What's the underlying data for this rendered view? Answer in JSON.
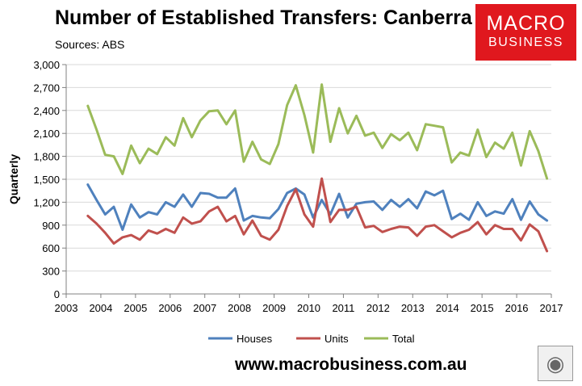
{
  "header": {
    "title": "Number of Established Transfers: Canberra",
    "source": "Sources: ABS"
  },
  "logo": {
    "line1": "MACRO",
    "line2": "BUSINESS"
  },
  "footer": {
    "url": "www.macrobusiness.com.au"
  },
  "badge": {
    "icon": "wolf-icon"
  },
  "chart_data": {
    "type": "line",
    "ylabel": "Quarterly",
    "xlim": [
      2003,
      2017
    ],
    "ylim": [
      0,
      3000
    ],
    "x_ticks": [
      2003,
      2004,
      2005,
      2006,
      2007,
      2008,
      2009,
      2010,
      2011,
      2012,
      2013,
      2014,
      2015,
      2016,
      2017
    ],
    "y_ticks": [
      "0",
      "300",
      "600",
      "900",
      "1,200",
      "1,500",
      "1,800",
      "2,100",
      "2,400",
      "2,700",
      "3,000"
    ],
    "grid": "horizontal",
    "legend": "bottom",
    "x": [
      2003.625,
      2003.875,
      2004.125,
      2004.375,
      2004.625,
      2004.875,
      2005.125,
      2005.375,
      2005.625,
      2005.875,
      2006.125,
      2006.375,
      2006.625,
      2006.875,
      2007.125,
      2007.375,
      2007.625,
      2007.875,
      2008.125,
      2008.375,
      2008.625,
      2008.875,
      2009.125,
      2009.375,
      2009.625,
      2009.875,
      2010.125,
      2010.375,
      2010.625,
      2010.875,
      2011.125,
      2011.375,
      2011.625,
      2011.875,
      2012.125,
      2012.375,
      2012.625,
      2012.875,
      2013.125,
      2013.375,
      2013.625,
      2013.875,
      2014.125,
      2014.375,
      2014.625,
      2014.875,
      2015.125,
      2015.375,
      2015.625,
      2015.875,
      2016.125,
      2016.375,
      2016.625,
      2016.875
    ],
    "series": [
      {
        "name": "Houses",
        "color": "#4f81bd",
        "values": [
          1430,
          1230,
          1040,
          1140,
          840,
          1170,
          1000,
          1070,
          1040,
          1200,
          1140,
          1300,
          1140,
          1320,
          1310,
          1260,
          1260,
          1380,
          960,
          1020,
          1000,
          990,
          1110,
          1320,
          1380,
          1300,
          1000,
          1230,
          1040,
          1310,
          1000,
          1180,
          1200,
          1210,
          1100,
          1230,
          1140,
          1240,
          1120,
          1340,
          1290,
          1350,
          980,
          1050,
          970,
          1200,
          1020,
          1080,
          1050,
          1240,
          970,
          1210,
          1040,
          960
        ]
      },
      {
        "name": "Units",
        "color": "#c0504d",
        "values": [
          1020,
          920,
          800,
          660,
          740,
          770,
          710,
          830,
          790,
          850,
          800,
          1000,
          920,
          950,
          1080,
          1140,
          950,
          1020,
          780,
          960,
          760,
          710,
          840,
          1150,
          1370,
          1040,
          880,
          1510,
          940,
          1100,
          1100,
          1140,
          870,
          890,
          810,
          850,
          880,
          870,
          760,
          880,
          900,
          820,
          740,
          800,
          840,
          940,
          780,
          900,
          850,
          850,
          700,
          910,
          820,
          560
        ]
      },
      {
        "name": "Total",
        "color": "#9bbb59",
        "values": [
          2460,
          2150,
          1820,
          1800,
          1570,
          1940,
          1710,
          1900,
          1830,
          2050,
          1940,
          2300,
          2050,
          2270,
          2390,
          2400,
          2220,
          2400,
          1730,
          1990,
          1760,
          1700,
          1960,
          2470,
          2730,
          2340,
          1850,
          2740,
          1990,
          2430,
          2100,
          2330,
          2070,
          2110,
          1910,
          2090,
          2010,
          2110,
          1880,
          2220,
          2200,
          2180,
          1720,
          1850,
          1810,
          2150,
          1790,
          1980,
          1900,
          2110,
          1680,
          2130,
          1870,
          1510
        ]
      }
    ]
  }
}
